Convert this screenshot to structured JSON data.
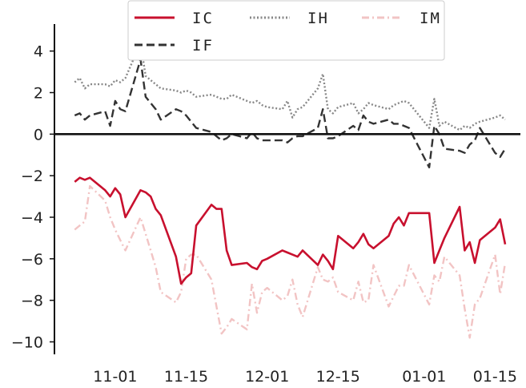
{
  "chart_data": {
    "type": "line",
    "x_format": "MM-DD",
    "x_ticks": [
      "2023-11-01",
      "2023-11-15",
      "2023-12-01",
      "2023-12-15",
      "2024-01-01",
      "2024-01-15"
    ],
    "x_tick_labels": [
      "11-01",
      "11-15",
      "12-01",
      "12-15",
      "01-01",
      "01-15"
    ],
    "xlim": [
      "2023-10-20",
      "2024-01-20"
    ],
    "y_ticks": [
      4,
      2,
      0,
      -2,
      -4,
      -6,
      -8,
      -10
    ],
    "y_tick_labels": [
      "4",
      "2",
      "0",
      "−2",
      "−4",
      "−6",
      "−8",
      "−10"
    ],
    "ylim": [
      -10.6,
      5.3
    ],
    "zero_line": true,
    "grid": false,
    "legend": {
      "placement": "top-center",
      "columns": 3
    },
    "series": [
      {
        "name": "IC",
        "color": "#c8102e",
        "style": "solid",
        "x": [
          "2023-10-24",
          "2023-10-25",
          "2023-10-26",
          "2023-10-27",
          "2023-10-30",
          "2023-10-31",
          "2023-11-01",
          "2023-11-02",
          "2023-11-03",
          "2023-11-06",
          "2023-11-07",
          "2023-11-08",
          "2023-11-09",
          "2023-11-10",
          "2023-11-13",
          "2023-11-14",
          "2023-11-15",
          "2023-11-16",
          "2023-11-17",
          "2023-11-20",
          "2023-11-21",
          "2023-11-22",
          "2023-11-23",
          "2023-11-24",
          "2023-11-27",
          "2023-11-28",
          "2023-11-29",
          "2023-11-30",
          "2023-12-01",
          "2023-12-04",
          "2023-12-05",
          "2023-12-06",
          "2023-12-07",
          "2023-12-08",
          "2023-12-11",
          "2023-12-12",
          "2023-12-13",
          "2023-12-14",
          "2023-12-15",
          "2023-12-18",
          "2023-12-19",
          "2023-12-20",
          "2023-12-21",
          "2023-12-22",
          "2023-12-25",
          "2023-12-26",
          "2023-12-27",
          "2023-12-28",
          "2023-12-29",
          "2024-01-02",
          "2024-01-03",
          "2024-01-04",
          "2024-01-05",
          "2024-01-08",
          "2024-01-09",
          "2024-01-10",
          "2024-01-11",
          "2024-01-12",
          "2024-01-15",
          "2024-01-16",
          "2024-01-17"
        ],
        "values": [
          -2.3,
          -2.1,
          -2.2,
          -2.1,
          -2.7,
          -3.0,
          -2.6,
          -2.9,
          -4.0,
          -2.7,
          -2.8,
          -3.0,
          -3.6,
          -3.9,
          -5.9,
          -7.2,
          -6.9,
          -6.7,
          -4.4,
          -3.4,
          -3.6,
          -3.6,
          -5.6,
          -6.3,
          -6.2,
          -6.4,
          -6.5,
          -6.1,
          -6.0,
          -5.6,
          -5.7,
          -5.8,
          -5.9,
          -5.6,
          -6.3,
          -5.8,
          -6.1,
          -6.5,
          -4.9,
          -5.5,
          -5.2,
          -4.8,
          -5.3,
          -5.5,
          -4.9,
          -4.3,
          -4.0,
          -4.4,
          -3.8,
          -3.8,
          -6.2,
          -5.6,
          -5.0,
          -3.5,
          -5.6,
          -5.2,
          -6.2,
          -5.1,
          -4.5,
          -4.1,
          -5.3
        ]
      },
      {
        "name": "IF",
        "color": "#333333",
        "style": "dashed",
        "x": [
          "2023-10-24",
          "2023-10-25",
          "2023-10-26",
          "2023-10-27",
          "2023-10-30",
          "2023-10-31",
          "2023-11-01",
          "2023-11-02",
          "2023-11-03",
          "2023-11-06",
          "2023-11-07",
          "2023-11-08",
          "2023-11-09",
          "2023-11-10",
          "2023-11-13",
          "2023-11-14",
          "2023-11-15",
          "2023-11-16",
          "2023-11-17",
          "2023-11-20",
          "2023-11-21",
          "2023-11-22",
          "2023-11-23",
          "2023-11-24",
          "2023-11-27",
          "2023-11-28",
          "2023-11-29",
          "2023-11-30",
          "2023-12-01",
          "2023-12-04",
          "2023-12-05",
          "2023-12-06",
          "2023-12-07",
          "2023-12-08",
          "2023-12-11",
          "2023-12-12",
          "2023-12-13",
          "2023-12-14",
          "2023-12-15",
          "2023-12-18",
          "2023-12-19",
          "2023-12-20",
          "2023-12-21",
          "2023-12-22",
          "2023-12-25",
          "2023-12-26",
          "2023-12-27",
          "2023-12-28",
          "2023-12-29",
          "2024-01-02",
          "2024-01-03",
          "2024-01-04",
          "2024-01-05",
          "2024-01-08",
          "2024-01-09",
          "2024-01-10",
          "2024-01-11",
          "2024-01-12",
          "2024-01-15",
          "2024-01-16",
          "2024-01-17"
        ],
        "values": [
          0.9,
          1.0,
          0.7,
          0.9,
          1.1,
          0.4,
          1.6,
          1.2,
          1.1,
          3.6,
          1.8,
          1.5,
          1.2,
          0.7,
          1.2,
          1.1,
          0.9,
          0.6,
          0.3,
          0.1,
          -0.1,
          -0.3,
          -0.2,
          0.0,
          -0.2,
          0.1,
          -0.2,
          -0.3,
          -0.3,
          -0.3,
          -0.4,
          -0.2,
          -0.1,
          -0.1,
          0.3,
          1.2,
          -0.2,
          -0.2,
          -0.1,
          0.4,
          0.2,
          0.9,
          0.6,
          0.5,
          0.7,
          0.5,
          0.5,
          0.4,
          0.3,
          -1.6,
          0.4,
          0.0,
          -0.7,
          -0.8,
          -0.9,
          -0.5,
          -0.3,
          0.3,
          -0.9,
          -1.1,
          -0.7
        ]
      },
      {
        "name": "IH",
        "color": "#888888",
        "style": "dotted",
        "x": [
          "2023-10-24",
          "2023-10-25",
          "2023-10-26",
          "2023-10-27",
          "2023-10-30",
          "2023-10-31",
          "2023-11-01",
          "2023-11-02",
          "2023-11-03",
          "2023-11-06",
          "2023-11-07",
          "2023-11-08",
          "2023-11-09",
          "2023-11-10",
          "2023-11-13",
          "2023-11-14",
          "2023-11-15",
          "2023-11-16",
          "2023-11-17",
          "2023-11-20",
          "2023-11-21",
          "2023-11-22",
          "2023-11-23",
          "2023-11-24",
          "2023-11-27",
          "2023-11-28",
          "2023-11-29",
          "2023-11-30",
          "2023-12-01",
          "2023-12-04",
          "2023-12-05",
          "2023-12-06",
          "2023-12-07",
          "2023-12-08",
          "2023-12-11",
          "2023-12-12",
          "2023-12-13",
          "2023-12-14",
          "2023-12-15",
          "2023-12-18",
          "2023-12-19",
          "2023-12-20",
          "2023-12-21",
          "2023-12-22",
          "2023-12-25",
          "2023-12-26",
          "2023-12-27",
          "2023-12-28",
          "2023-12-29",
          "2024-01-02",
          "2024-01-03",
          "2024-01-04",
          "2024-01-05",
          "2024-01-08",
          "2024-01-09",
          "2024-01-10",
          "2024-01-11",
          "2024-01-12",
          "2024-01-15",
          "2024-01-16",
          "2024-01-17"
        ],
        "values": [
          2.5,
          2.7,
          2.2,
          2.4,
          2.4,
          2.3,
          2.6,
          2.5,
          2.7,
          4.4,
          2.8,
          2.6,
          2.4,
          2.2,
          2.1,
          2.0,
          2.1,
          2.0,
          1.8,
          1.9,
          1.8,
          1.7,
          1.7,
          1.9,
          1.6,
          1.5,
          1.6,
          1.4,
          1.3,
          1.2,
          1.6,
          0.8,
          1.2,
          1.3,
          2.2,
          2.9,
          1.2,
          1.0,
          1.3,
          1.5,
          1.0,
          1.2,
          1.5,
          1.4,
          1.2,
          1.4,
          1.5,
          1.6,
          1.5,
          0.3,
          1.7,
          0.4,
          0.6,
          0.2,
          0.4,
          0.3,
          0.5,
          0.6,
          0.8,
          0.9,
          0.7
        ]
      },
      {
        "name": "IM",
        "color": "#f2c4c4",
        "style": "dashdot",
        "x": [
          "2023-10-24",
          "2023-10-25",
          "2023-10-26",
          "2023-10-27",
          "2023-10-30",
          "2023-10-31",
          "2023-11-01",
          "2023-11-02",
          "2023-11-03",
          "2023-11-06",
          "2023-11-07",
          "2023-11-08",
          "2023-11-09",
          "2023-11-10",
          "2023-11-13",
          "2023-11-14",
          "2023-11-15",
          "2023-11-16",
          "2023-11-17",
          "2023-11-20",
          "2023-11-21",
          "2023-11-22",
          "2023-11-23",
          "2023-11-24",
          "2023-11-27",
          "2023-11-28",
          "2023-11-29",
          "2023-11-30",
          "2023-12-01",
          "2023-12-04",
          "2023-12-05",
          "2023-12-06",
          "2023-12-07",
          "2023-12-08",
          "2023-12-11",
          "2023-12-12",
          "2023-12-13",
          "2023-12-14",
          "2023-12-15",
          "2023-12-18",
          "2023-12-19",
          "2023-12-20",
          "2023-12-21",
          "2023-12-22",
          "2023-12-25",
          "2023-12-26",
          "2023-12-27",
          "2023-12-28",
          "2023-12-29",
          "2024-01-02",
          "2024-01-03",
          "2024-01-04",
          "2024-01-05",
          "2024-01-08",
          "2024-01-09",
          "2024-01-10",
          "2024-01-11",
          "2024-01-12",
          "2024-01-15",
          "2024-01-16",
          "2024-01-17"
        ],
        "values": [
          -4.6,
          -4.4,
          -4.2,
          -2.5,
          -3.2,
          -4.0,
          -4.6,
          -5.1,
          -5.6,
          -4.0,
          -4.8,
          -5.6,
          -6.4,
          -7.6,
          -8.1,
          -7.6,
          -6.0,
          -5.8,
          -5.8,
          -7.0,
          -8.3,
          -9.6,
          -9.3,
          -8.9,
          -9.4,
          -7.2,
          -8.6,
          -7.6,
          -7.4,
          -8.0,
          -7.8,
          -7.0,
          -8.2,
          -8.8,
          -6.4,
          -7.0,
          -7.1,
          -6.9,
          -7.6,
          -8.0,
          -7.1,
          -8.1,
          -8.0,
          -6.3,
          -8.3,
          -7.8,
          -7.3,
          -7.3,
          -6.3,
          -8.2,
          -6.8,
          -7.1,
          -5.9,
          -6.8,
          -8.4,
          -9.8,
          -8.2,
          -7.9,
          -5.8,
          -7.7,
          -6.2
        ]
      }
    ]
  }
}
